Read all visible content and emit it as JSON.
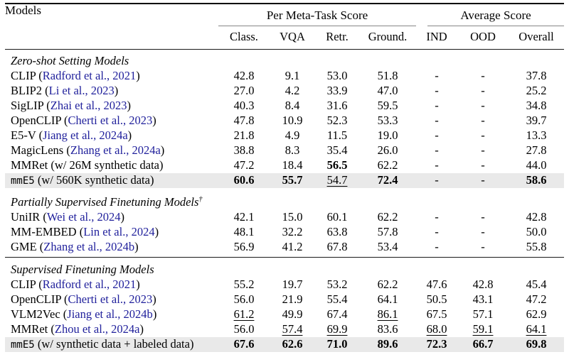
{
  "colors": {
    "cite_color": "#21219c",
    "highlight_bg": "#e9e9e9"
  },
  "table": {
    "models_header": "Models",
    "group_headers": [
      "Per Meta-Task Score",
      "Average Score"
    ],
    "sub_headers": [
      "Class.",
      "VQA",
      "Retr.",
      "Ground.",
      "IND",
      "OOD",
      "Overall"
    ],
    "sections": [
      {
        "title": "Zero-shot Setting Models",
        "dagger": "",
        "rows": [
          {
            "name": "CLIP",
            "name_mono": false,
            "paren": "Radford et al., 2021",
            "is_cite": true,
            "highlight": false,
            "cells": [
              "42.8",
              "9.1",
              "53.0",
              "51.8",
              "-",
              "-",
              "37.8"
            ],
            "styles": [
              "",
              "",
              "",
              "",
              "",
              "",
              ""
            ]
          },
          {
            "name": "BLIP2",
            "name_mono": false,
            "paren": "Li et al., 2023",
            "is_cite": true,
            "highlight": false,
            "cells": [
              "27.0",
              "4.2",
              "33.9",
              "47.0",
              "-",
              "-",
              "25.2"
            ],
            "styles": [
              "",
              "",
              "",
              "",
              "",
              "",
              ""
            ]
          },
          {
            "name": "SigLIP",
            "name_mono": false,
            "paren": "Zhai et al., 2023",
            "is_cite": true,
            "highlight": false,
            "cells": [
              "40.3",
              "8.4",
              "31.6",
              "59.5",
              "-",
              "-",
              "34.8"
            ],
            "styles": [
              "",
              "",
              "",
              "",
              "",
              "",
              ""
            ]
          },
          {
            "name": "OpenCLIP",
            "name_mono": false,
            "paren": "Cherti et al., 2023",
            "is_cite": true,
            "highlight": false,
            "cells": [
              "47.8",
              "10.9",
              "52.3",
              "53.3",
              "-",
              "-",
              "39.7"
            ],
            "styles": [
              "",
              "",
              "",
              "",
              "",
              "",
              ""
            ]
          },
          {
            "name": "E5-V",
            "name_mono": false,
            "paren": "Jiang et al., 2024a",
            "is_cite": true,
            "highlight": false,
            "cells": [
              "21.8",
              "4.9",
              "11.5",
              "19.0",
              "-",
              "-",
              "13.3"
            ],
            "styles": [
              "",
              "",
              "",
              "",
              "",
              "",
              ""
            ]
          },
          {
            "name": "MagicLens",
            "name_mono": false,
            "paren": "Zhang et al., 2024a",
            "is_cite": true,
            "highlight": false,
            "cells": [
              "38.8",
              "8.3",
              "35.4",
              "26.0",
              "-",
              "-",
              "27.8"
            ],
            "styles": [
              "",
              "",
              "",
              "",
              "",
              "",
              ""
            ]
          },
          {
            "name": "MMRet",
            "name_mono": false,
            "paren": "w/ 26M synthetic data",
            "is_cite": false,
            "highlight": false,
            "cells": [
              "47.2",
              "18.4",
              "56.5",
              "62.2",
              "-",
              "-",
              "44.0"
            ],
            "styles": [
              "",
              "",
              "b",
              "",
              "",
              "",
              ""
            ]
          },
          {
            "name": "mmE5",
            "name_mono": true,
            "paren": "w/ 560K synthetic data",
            "is_cite": false,
            "highlight": true,
            "cells": [
              "60.6",
              "55.7",
              "54.7",
              "72.4",
              "-",
              "-",
              "58.6"
            ],
            "styles": [
              "b",
              "b",
              "u",
              "b",
              "",
              "",
              "b"
            ]
          }
        ]
      },
      {
        "title": "Partially Supervised Finetuning Models",
        "dagger": "†",
        "rows": [
          {
            "name": "UniIR",
            "name_mono": false,
            "paren": "Wei et al., 2024",
            "is_cite": true,
            "highlight": false,
            "cells": [
              "42.1",
              "15.0",
              "60.1",
              "62.2",
              "-",
              "-",
              "42.8"
            ],
            "styles": [
              "",
              "",
              "",
              "",
              "",
              "",
              ""
            ]
          },
          {
            "name": "MM-EMBED",
            "name_mono": false,
            "paren": "Lin et al., 2024",
            "is_cite": true,
            "highlight": false,
            "cells": [
              "48.1",
              "32.2",
              "63.8",
              "57.8",
              "-",
              "-",
              "50.0"
            ],
            "styles": [
              "",
              "",
              "",
              "",
              "",
              "",
              ""
            ]
          },
          {
            "name": "GME",
            "name_mono": false,
            "paren": "Zhang et al., 2024b",
            "is_cite": true,
            "highlight": false,
            "cells": [
              "56.9",
              "41.2",
              "67.8",
              "53.4",
              "-",
              "-",
              "55.8"
            ],
            "styles": [
              "",
              "",
              "",
              "",
              "",
              "",
              ""
            ]
          }
        ]
      },
      {
        "title": "Supervised Finetuning Models",
        "dagger": "",
        "rows": [
          {
            "name": "CLIP",
            "name_mono": false,
            "paren": "Radford et al., 2021",
            "is_cite": true,
            "highlight": false,
            "cells": [
              "55.2",
              "19.7",
              "53.2",
              "62.2",
              "47.6",
              "42.8",
              "45.4"
            ],
            "styles": [
              "",
              "",
              "",
              "",
              "",
              "",
              ""
            ]
          },
          {
            "name": "OpenCLIP",
            "name_mono": false,
            "paren": "Cherti et al., 2023",
            "is_cite": true,
            "highlight": false,
            "cells": [
              "56.0",
              "21.9",
              "55.4",
              "64.1",
              "50.5",
              "43.1",
              "47.2"
            ],
            "styles": [
              "",
              "",
              "",
              "",
              "",
              "",
              ""
            ]
          },
          {
            "name": "VLM2Vec",
            "name_mono": false,
            "paren": "Jiang et al., 2024b",
            "is_cite": true,
            "highlight": false,
            "cells": [
              "61.2",
              "49.9",
              "67.4",
              "86.1",
              "67.5",
              "57.1",
              "62.9"
            ],
            "styles": [
              "u",
              "",
              "",
              "u",
              "",
              "",
              ""
            ]
          },
          {
            "name": "MMRet",
            "name_mono": false,
            "paren": "Zhou et al., 2024a",
            "is_cite": true,
            "highlight": false,
            "cells": [
              "56.0",
              "57.4",
              "69.9",
              "83.6",
              "68.0",
              "59.1",
              "64.1"
            ],
            "styles": [
              "",
              "u",
              "u",
              "",
              "u",
              "u",
              "u"
            ]
          },
          {
            "name": "mmE5",
            "name_mono": true,
            "paren": "w/ synthetic data + labeled data",
            "is_cite": false,
            "highlight": true,
            "cells": [
              "67.6",
              "62.6",
              "71.0",
              "89.6",
              "72.3",
              "66.7",
              "69.8"
            ],
            "styles": [
              "b",
              "b",
              "b",
              "b",
              "b",
              "b",
              "b"
            ]
          }
        ]
      }
    ]
  }
}
